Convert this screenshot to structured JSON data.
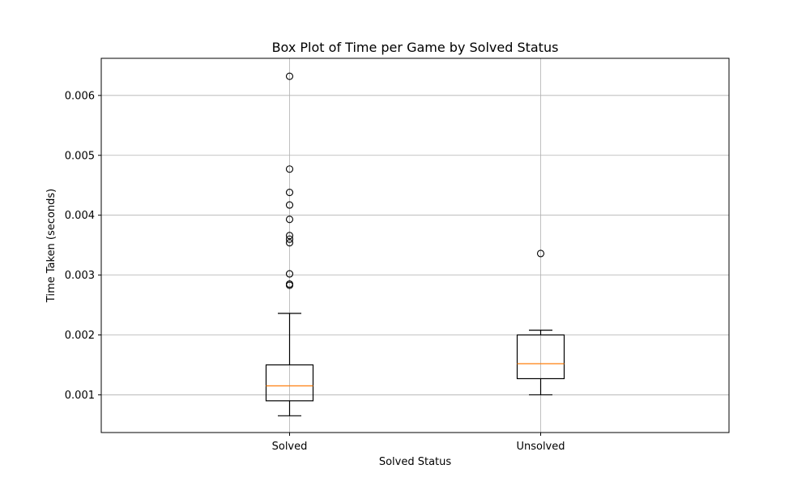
{
  "chart_data": {
    "type": "box",
    "title": "Box Plot of Time per Game by Solved Status",
    "xlabel": "Solved Status",
    "ylabel": "Time Taken (seconds)",
    "ylim": [
      0.00037,
      0.00662
    ],
    "yticks": [
      0.001,
      0.002,
      0.003,
      0.004,
      0.005,
      0.006
    ],
    "ytick_labels": [
      "0.001",
      "0.002",
      "0.003",
      "0.004",
      "0.005",
      "0.006"
    ],
    "grid": true,
    "categories": [
      "Solved",
      "Unsolved"
    ],
    "boxes": [
      {
        "name": "Solved",
        "whisker_low": 0.00065,
        "q1": 0.0009,
        "median": 0.00115,
        "q3": 0.0015,
        "whisker_high": 0.00236,
        "outliers": [
          0.00283,
          0.00285,
          0.00302,
          0.00354,
          0.0036,
          0.00366,
          0.00393,
          0.00417,
          0.00438,
          0.00477,
          0.00632
        ]
      },
      {
        "name": "Unsolved",
        "whisker_low": 0.001,
        "q1": 0.00127,
        "median": 0.00152,
        "q3": 0.002,
        "whisker_high": 0.00208,
        "outliers": [
          0.00336
        ]
      }
    ],
    "colors": {
      "box": "#000000",
      "median": "#ff7f0e",
      "grid": "#b0b0b0"
    }
  }
}
